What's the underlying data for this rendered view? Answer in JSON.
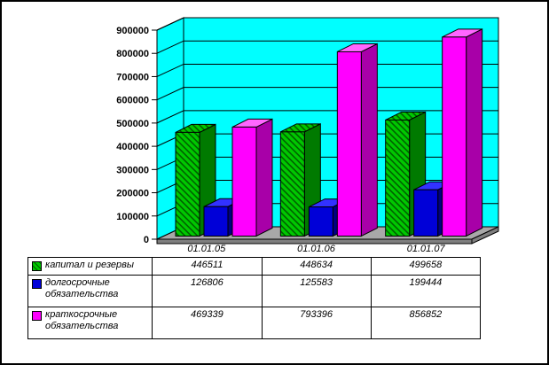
{
  "chart_data": {
    "type": "bar",
    "variant": "3d-column",
    "title": "",
    "categories": [
      "01.01.05",
      "01.01.06",
      "01.01.07"
    ],
    "series": [
      {
        "key": "capital-and-reserves",
        "name": "капитал и резервы",
        "values": [
          446511,
          448634,
          499658
        ],
        "pattern": "diagonal-hatch",
        "colors": {
          "front": "#00C800",
          "top": "#00E000",
          "side": "#007A00",
          "hatch": "#006000"
        }
      },
      {
        "key": "long-term-liabilities",
        "name": "долгосрочные обязательства",
        "values": [
          126806,
          125583,
          199444
        ],
        "colors": {
          "front": "#0000D8",
          "top": "#3232FF",
          "side": "#000080"
        }
      },
      {
        "key": "short-term-liabilities",
        "name": "краткосрочные обязательства",
        "values": [
          469339,
          793396,
          856852
        ],
        "colors": {
          "front": "#FF00FF",
          "top": "#FF66FF",
          "side": "#A800A8"
        }
      }
    ],
    "ylim": [
      0,
      900000
    ],
    "y_tick_step": 100000,
    "y_ticks": [
      "0",
      "100000",
      "200000",
      "300000",
      "400000",
      "500000",
      "600000",
      "700000",
      "800000",
      "900000"
    ],
    "grid": true,
    "legend_position": "table-left",
    "wall_color": "#00FFFF",
    "floor_color": "#A8A8A8",
    "floor_edge_color": "#7F7F7F",
    "axis_color": "#000000"
  }
}
